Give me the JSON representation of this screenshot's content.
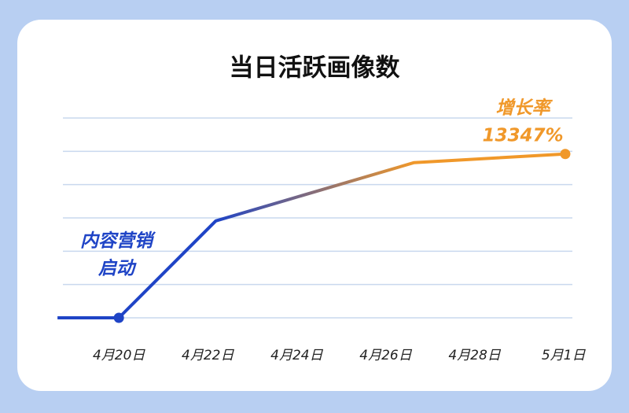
{
  "chart_data": {
    "type": "line",
    "title": "当日活跃画像数",
    "x": [
      -0.69,
      0,
      1.09,
      3.32,
      5.02
    ],
    "xlim": [
      -0.7,
      5.1
    ],
    "xticks": [
      {
        "value": 0,
        "label": "4月20日"
      },
      {
        "value": 1,
        "label": "4月22日"
      },
      {
        "value": 2,
        "label": "4月24日"
      },
      {
        "value": 3,
        "label": "4月26日"
      },
      {
        "value": 4,
        "label": "4月28日"
      },
      {
        "value": 5,
        "label": "5月1日"
      }
    ],
    "series": [
      {
        "values": [
          0,
          0,
          2.91,
          4.66,
          4.92
        ],
        "colors": [
          "#1f44c6",
          "#f0982a"
        ]
      }
    ],
    "ylim": [
      0,
      6
    ],
    "yticks": [
      0,
      1,
      2,
      3,
      4,
      5,
      6
    ],
    "grid": true,
    "annotations": [
      {
        "lines": [
          "内容营销",
          "启动"
        ],
        "color": "#1f44c6"
      },
      {
        "lines": [
          "增长率",
          "13347%"
        ],
        "color": "#f0982a"
      }
    ]
  }
}
